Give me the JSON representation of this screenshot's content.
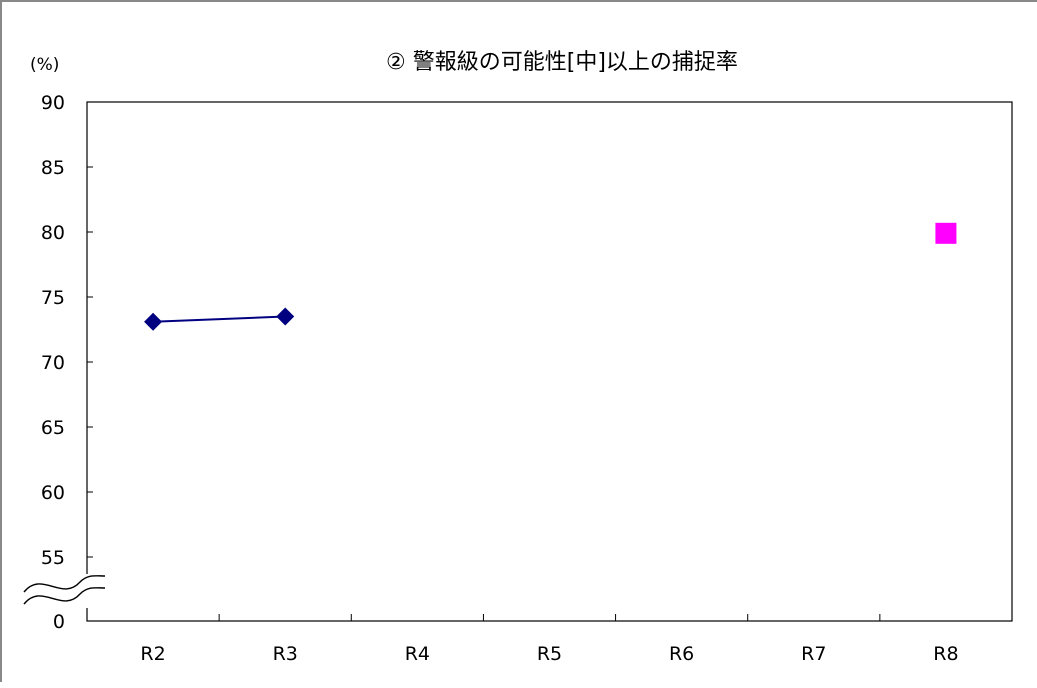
{
  "chart_data": {
    "type": "line",
    "title": "② 警報級の可能性[中]以上の捕捉率",
    "unit_label": "(%)",
    "categories": [
      "R2",
      "R3",
      "R4",
      "R5",
      "R6",
      "R7",
      "R8"
    ],
    "y_ticks": [
      "90",
      "85",
      "80",
      "75",
      "70",
      "65",
      "60",
      "55",
      "0"
    ],
    "ylim": [
      55,
      90
    ],
    "axis_break": "between 0 and 55",
    "grid": false,
    "series": [
      {
        "type": "line",
        "marker": "diamond",
        "color": "#000080",
        "values": [
          73.1,
          73.5,
          null,
          null,
          null,
          null,
          null
        ]
      },
      {
        "type": "scatter",
        "marker": "square",
        "color": "#ff00ff",
        "values": [
          null,
          null,
          null,
          null,
          null,
          null,
          79.9
        ]
      }
    ]
  }
}
